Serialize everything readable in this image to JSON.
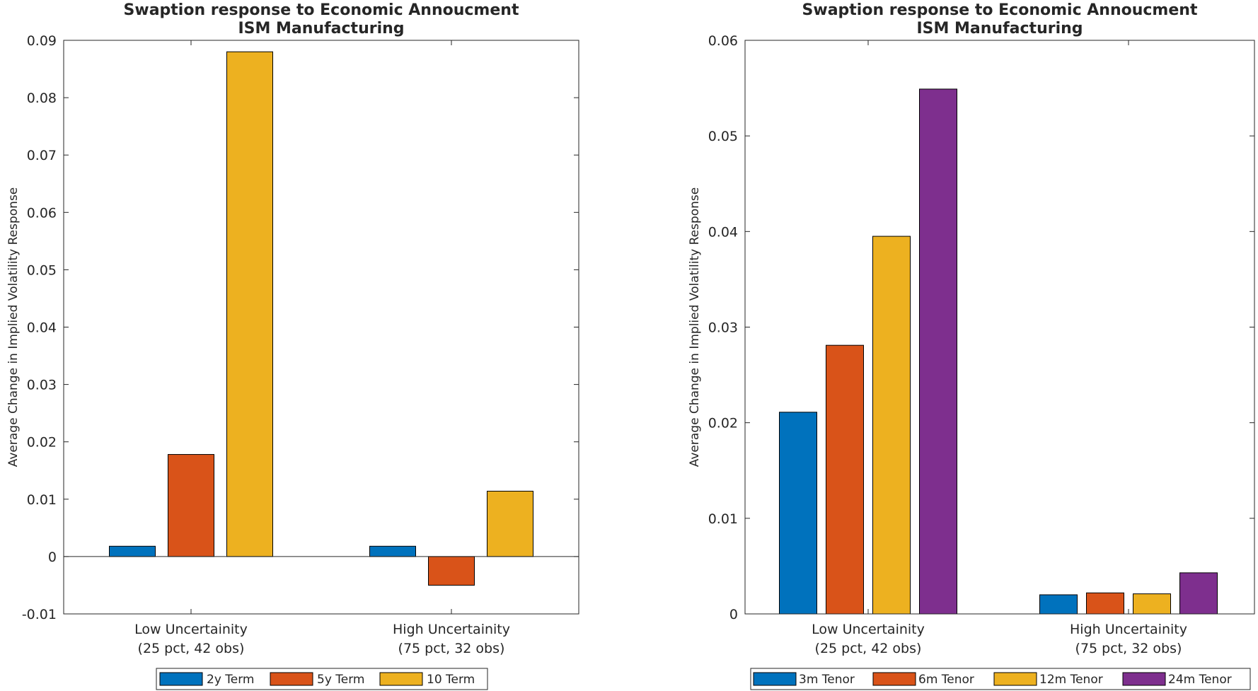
{
  "chart_data": [
    {
      "type": "bar",
      "title": "Swaption response to Economic Annoucment",
      "subtitle": "ISM Manufacturing",
      "xlabel": "",
      "ylabel": "Average Change in Implied Volatility Response",
      "categories": [
        [
          "Low Uncertainity",
          "(25 pct, 42 obs)"
        ],
        [
          "High Uncertainity",
          "(75 pct, 32 obs)"
        ]
      ],
      "ylim": [
        -0.01,
        0.09
      ],
      "yticks": [
        "-0.01",
        "0",
        "0.01",
        "0.02",
        "0.03",
        "0.04",
        "0.05",
        "0.06",
        "0.07",
        "0.08",
        "0.09"
      ],
      "legend_position": "bottom",
      "series": [
        {
          "name": "2y Term",
          "color": "#0072BD",
          "values": [
            0.0018,
            0.0018
          ]
        },
        {
          "name": "5y Term",
          "color": "#D95319",
          "values": [
            0.0178,
            -0.005
          ]
        },
        {
          "name": "10 Term",
          "color": "#EDB120",
          "values": [
            0.088,
            0.0114
          ]
        }
      ]
    },
    {
      "type": "bar",
      "title": "Swaption response to Economic Annoucment",
      "subtitle": "ISM Manufacturing",
      "xlabel": "",
      "ylabel": "Average Change in Implied Volatility Response",
      "categories": [
        [
          "Low Uncertainity",
          "(25 pct, 42 obs)"
        ],
        [
          "High Uncertainity",
          "(75 pct, 32 obs)"
        ]
      ],
      "ylim": [
        0,
        0.06
      ],
      "yticks": [
        "0",
        "0.01",
        "0.02",
        "0.03",
        "0.04",
        "0.05",
        "0.06"
      ],
      "legend_position": "bottom",
      "series": [
        {
          "name": "3m Tenor",
          "color": "#0072BD",
          "values": [
            0.0211,
            0.002
          ]
        },
        {
          "name": "6m Tenor",
          "color": "#D95319",
          "values": [
            0.0281,
            0.0022
          ]
        },
        {
          "name": "12m Tenor",
          "color": "#EDB120",
          "values": [
            0.0395,
            0.0021
          ]
        },
        {
          "name": "24m Tenor",
          "color": "#7E2F8E",
          "values": [
            0.0549,
            0.0043
          ]
        }
      ]
    }
  ]
}
